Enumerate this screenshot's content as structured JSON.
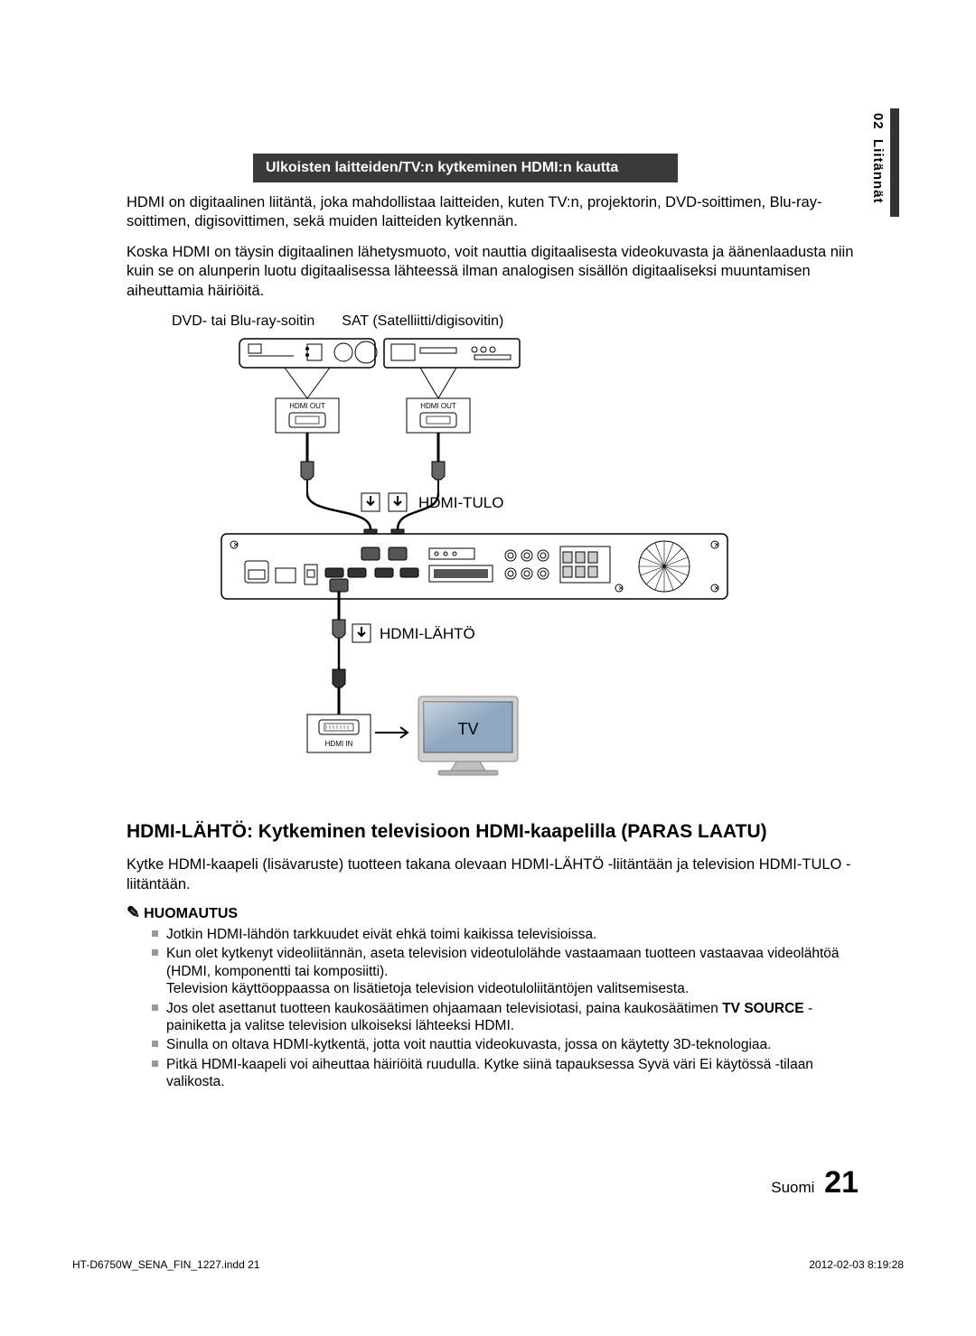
{
  "side": {
    "section_num": "02",
    "section_name": "Liitännät"
  },
  "section_bar": "Ulkoisten laitteiden/TV:n kytkeminen HDMI:n kautta",
  "intro": {
    "p1": "HDMI on digitaalinen liitäntä, joka mahdollistaa laitteiden, kuten TV:n, projektorin, DVD-soittimen, Blu-ray-soittimen, digisovittimen, sekä muiden laitteiden kytkennän.",
    "p2": "Koska HDMI on täysin digitaalinen lähetysmuoto, voit nauttia digitaalisesta videokuvasta ja äänenlaadusta niin kuin se on alunperin luotu digitaalisessa lähteessä ilman analogisen sisällön digitaaliseksi muuntamisen aiheuttamia häiriöitä."
  },
  "device_labels": {
    "dvd": "DVD- tai Blu-ray-soitin",
    "sat": "SAT (Satelliitti/digisovitin)"
  },
  "diagram": {
    "hdmi_out_1": "HDMI OUT",
    "hdmi_out_2": "HDMI OUT",
    "hdmi_in_label": "HDMI-TULO",
    "hdmi_out_label": "HDMI-LÄHTÖ",
    "hdmi_in_port": "HDMI IN",
    "tv_label": "TV"
  },
  "subhead": "HDMI-LÄHTÖ: Kytkeminen televisioon HDMI-kaapelilla (PARAS LAATU)",
  "body_p": "Kytke HDMI-kaapeli (lisävaruste) tuotteen takana olevaan HDMI-LÄHTÖ -liitäntään ja television HDMI-TULO -liitäntään.",
  "note_head": "HUOMAUTUS",
  "notes": [
    "Jotkin HDMI-lähdön tarkkuudet eivät ehkä toimi kaikissa televisioissa.",
    "Kun olet kytkenyt videoliitännän, aseta television videotulolähde vastaamaan tuotteen vastaavaa videolähtöä (HDMI, komponentti tai komposiitti).\nTelevision käyttöoppaassa on lisätietoja television videotuloliitäntöjen valitsemisesta.",
    "Jos olet asettanut tuotteen kaukosäätimen ohjaamaan televisiotasi, paina kaukosäätimen |TV SOURCE| -painiketta ja valitse television ulkoiseksi lähteeksi HDMI.",
    "Sinulla on oltava HDMI-kytkentä, jotta voit nauttia videokuvasta, jossa on käytetty 3D-teknologiaa.",
    "Pitkä HDMI-kaapeli voi aiheuttaa häiriöitä ruudulla. Kytke siinä tapauksessa Syvä väri Ei käytössä -tilaan valikosta."
  ],
  "footer": {
    "lang": "Suomi",
    "page": "21"
  },
  "crop": {
    "file": "HT-D6750W_SENA_FIN_1227.indd   21",
    "date": "2012-02-03   8:19:28"
  }
}
